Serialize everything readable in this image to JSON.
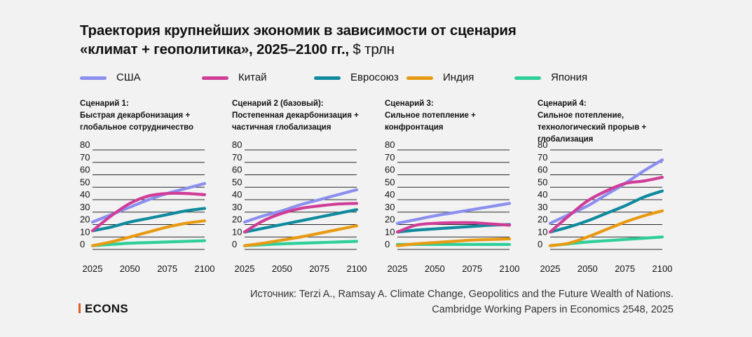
{
  "title": {
    "bold_line1": "Траектория крупнейших экономик в зависимости от сценария",
    "bold_line2": "«климат + геополитика», 2025–2100 гг.,",
    "unit": " $ трлн"
  },
  "legend": [
    {
      "name": "США",
      "color": "#8b8fee"
    },
    {
      "name": "Китай",
      "color": "#d03d98"
    },
    {
      "name": "Евросоюз",
      "color": "#0f8a9e"
    },
    {
      "name": "Индия",
      "color": "#e89a12"
    },
    {
      "name": "Япония",
      "color": "#2fcf9a"
    }
  ],
  "chart_data": [
    {
      "type": "line",
      "title_lines": [
        "Сценарий 1:",
        "Быстрая декарбонизация +",
        "глобальное сотрудничество"
      ],
      "x": [
        2025,
        2037.5,
        2050,
        2062.5,
        2075,
        2087.5,
        2100
      ],
      "xticks": [
        "2025",
        "2050",
        "2075",
        "2100"
      ],
      "yticks": [
        "0",
        "10",
        "20",
        "30",
        "40",
        "50",
        "60",
        "70",
        "80"
      ],
      "ylim": [
        0,
        80
      ],
      "series": [
        {
          "name": "США",
          "values": [
            22,
            28,
            34,
            40,
            45,
            49,
            53
          ]
        },
        {
          "name": "Китай",
          "values": [
            15,
            27,
            37,
            43,
            45,
            45,
            44
          ]
        },
        {
          "name": "Евросоюз",
          "values": [
            15,
            18,
            22,
            25,
            28,
            31,
            33
          ]
        },
        {
          "name": "Индия",
          "values": [
            3,
            6,
            10,
            14,
            18,
            21,
            23
          ]
        },
        {
          "name": "Япония",
          "values": [
            3,
            4,
            5,
            5.5,
            6,
            6.5,
            7
          ]
        }
      ]
    },
    {
      "type": "line",
      "title_lines": [
        "Сценарий 2 (базовый):",
        "Постепенная декарбонизация +",
        "частичная глобализация"
      ],
      "x": [
        2025,
        2037.5,
        2050,
        2062.5,
        2075,
        2087.5,
        2100
      ],
      "xticks": [
        "2025",
        "2050",
        "2075",
        "2100"
      ],
      "yticks": [
        "0",
        "10",
        "20",
        "30",
        "40",
        "50",
        "60",
        "70",
        "80"
      ],
      "ylim": [
        0,
        80
      ],
      "series": [
        {
          "name": "США",
          "values": [
            22,
            27,
            31,
            36,
            40,
            44,
            48
          ]
        },
        {
          "name": "Китай",
          "values": [
            14,
            23,
            29,
            33,
            35,
            36.5,
            37
          ]
        },
        {
          "name": "Евросоюз",
          "values": [
            14,
            17,
            20,
            23,
            26,
            29,
            32
          ]
        },
        {
          "name": "Индия",
          "values": [
            3,
            5,
            7.5,
            10,
            13,
            16,
            19
          ]
        },
        {
          "name": "Япония",
          "values": [
            3,
            3.8,
            4.5,
            5,
            5.5,
            6,
            6.5
          ]
        }
      ]
    },
    {
      "type": "line",
      "title_lines": [
        "Сценарий 3:",
        "Сильное потепление +",
        "конфронтация"
      ],
      "x": [
        2025,
        2037.5,
        2050,
        2062.5,
        2075,
        2087.5,
        2100
      ],
      "xticks": [
        "2025",
        "2050",
        "2075",
        "2100"
      ],
      "yticks": [
        "0",
        "10",
        "20",
        "30",
        "40",
        "50",
        "60",
        "70",
        "80"
      ],
      "ylim": [
        0,
        80
      ],
      "series": [
        {
          "name": "США",
          "values": [
            21,
            24,
            27,
            29.5,
            32,
            34.5,
            37
          ]
        },
        {
          "name": "Китай",
          "values": [
            14,
            19.5,
            21,
            21.5,
            21.5,
            20.5,
            19.5
          ]
        },
        {
          "name": "Евросоюз",
          "values": [
            14,
            15.5,
            16.5,
            17.5,
            18.5,
            19.5,
            20
          ]
        },
        {
          "name": "Индия",
          "values": [
            3,
            4.5,
            5.5,
            6.5,
            7.5,
            8,
            8.5
          ]
        },
        {
          "name": "Япония",
          "values": [
            4,
            4,
            4,
            4,
            4,
            4,
            4
          ]
        }
      ]
    },
    {
      "type": "line",
      "title_lines": [
        "Сценарий 4:",
        "Сильное потепление,",
        "технологический прорыв +",
        "глобализация"
      ],
      "x": [
        2025,
        2037.5,
        2050,
        2062.5,
        2075,
        2087.5,
        2100
      ],
      "xticks": [
        "2025",
        "2050",
        "2075",
        "2100"
      ],
      "yticks": [
        "0",
        "10",
        "20",
        "30",
        "40",
        "50",
        "60",
        "70",
        "80"
      ],
      "ylim": [
        0,
        80
      ],
      "series": [
        {
          "name": "США",
          "values": [
            21,
            28,
            35,
            44,
            53,
            63,
            72
          ]
        },
        {
          "name": "Китай",
          "values": [
            14,
            27,
            39,
            47,
            53,
            55,
            58
          ]
        },
        {
          "name": "Евросоюз",
          "values": [
            14,
            18,
            23,
            29,
            35,
            42,
            47
          ]
        },
        {
          "name": "Индия",
          "values": [
            3,
            5,
            10,
            16,
            22,
            27,
            31
          ]
        },
        {
          "name": "Япония",
          "values": [
            3,
            4.5,
            6,
            7,
            8,
            9,
            10
          ]
        }
      ]
    }
  ],
  "source": {
    "line1": "Источник: Terzi A., Ramsay A. Climate Change, Geopolitics and the Future Wealth of Nations.",
    "line2": "Cambridge Working Papers in Economics 2548, 2025"
  },
  "logo": "ECONS"
}
